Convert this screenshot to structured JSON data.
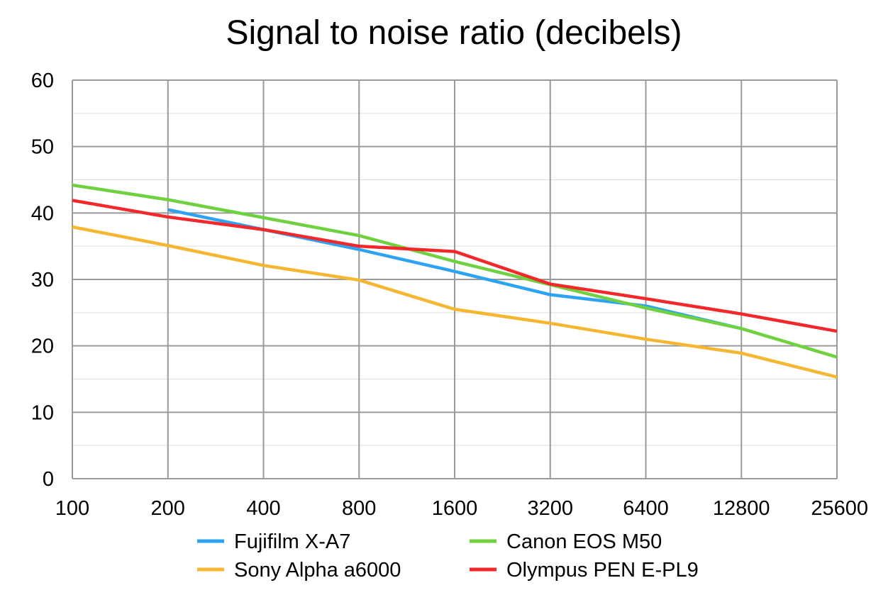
{
  "chart_data": {
    "type": "line",
    "title": "Signal to noise ratio (decibels)",
    "xlabel": "",
    "ylabel": "",
    "categories": [
      "100",
      "200",
      "400",
      "800",
      "1600",
      "3200",
      "6400",
      "12800",
      "25600"
    ],
    "ylim": [
      0,
      60
    ],
    "yticks": [
      0,
      10,
      20,
      30,
      40,
      50,
      60
    ],
    "grid": true,
    "legend_position": "bottom",
    "series": [
      {
        "name": "Fujifilm X-A7",
        "color": "#2ea3f2",
        "values": [
          null,
          40.5,
          37.5,
          34.5,
          31.2,
          27.7,
          26.0,
          22.6,
          null
        ]
      },
      {
        "name": "Canon EOS M50",
        "color": "#6fd13f",
        "values": [
          44.2,
          42.0,
          39.3,
          36.6,
          32.7,
          29.2,
          25.7,
          22.6,
          18.3
        ]
      },
      {
        "name": "Sony Alpha a6000",
        "color": "#f5b731",
        "values": [
          37.9,
          35.1,
          32.1,
          29.9,
          25.5,
          23.4,
          21.0,
          18.9,
          15.3
        ]
      },
      {
        "name": "Olympus PEN E-PL9",
        "color": "#f2282a",
        "values": [
          41.9,
          39.4,
          37.5,
          35.0,
          34.2,
          29.3,
          27.1,
          24.8,
          22.2
        ]
      }
    ]
  }
}
